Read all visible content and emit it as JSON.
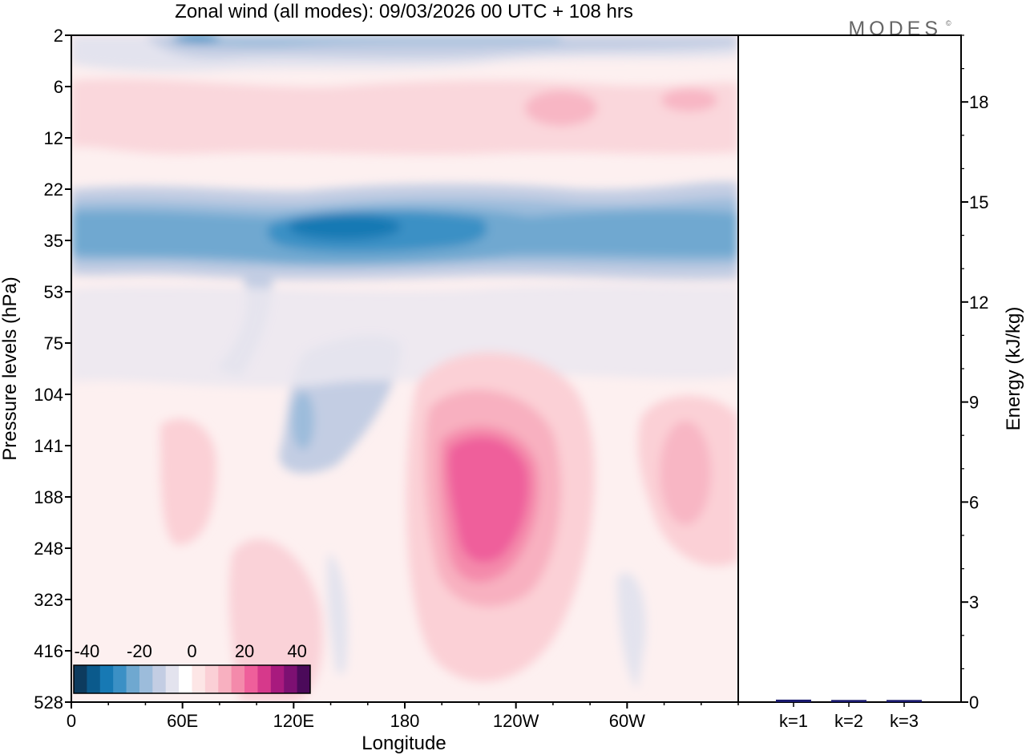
{
  "chart_data": [
    {
      "type": "heatmap",
      "title": "Zonal wind (all modes):  09/03/2026  00 UTC  + 108 hrs",
      "xlabel": "Longitude",
      "ylabel": "Pressure levels (hPa)",
      "x_ticks": [
        "0",
        "60E",
        "120E",
        "180",
        "120W",
        "60W"
      ],
      "x_tick_lon": [
        0,
        60,
        120,
        180,
        240,
        300
      ],
      "xlim": [
        0,
        360
      ],
      "y_ticks": [
        "2",
        "6",
        "12",
        "22",
        "35",
        "53",
        "75",
        "104",
        "141",
        "188",
        "248",
        "323",
        "416",
        "528"
      ],
      "colorbar": {
        "tick_labels": [
          "-40",
          "-20",
          "0",
          "20",
          "40"
        ],
        "tick_values": [
          -40,
          -20,
          0,
          20,
          40
        ],
        "range": [
          -45,
          45
        ],
        "colors": [
          "#0d3b5e",
          "#0b5a8c",
          "#1779b4",
          "#3b90c5",
          "#6fa8d0",
          "#9cbcdb",
          "#c3cde3",
          "#e3e3ee",
          "#ffffff",
          "#fde6e6",
          "#fbd0d6",
          "#f8b0c0",
          "#f48aab",
          "#ef5f9b",
          "#d6398b",
          "#a81a7e",
          "#7d1072",
          "#4b0a5a"
        ]
      },
      "field_features": [
        {
          "name": "jet core 35hPa east",
          "lon": 145,
          "level": 35,
          "value": -36
        },
        {
          "name": "jet 35hPa west",
          "lon": 330,
          "level": 35,
          "value": -28
        },
        {
          "name": "upper easterly 2hPa",
          "lon": 60,
          "level": 2,
          "value": -24
        },
        {
          "name": "westerly maximum 188hPa",
          "lon": 205,
          "level": 188,
          "value": 26
        },
        {
          "name": "westerly 141hPa east",
          "lon": 330,
          "level": 141,
          "value": 14
        }
      ]
    },
    {
      "type": "bar",
      "ylabel": "Energy (kJ/kg)",
      "categories": [
        "k=1",
        "k=2",
        "k=3"
      ],
      "values": [
        0.05,
        0.04,
        0.04
      ],
      "ylim": [
        0,
        20
      ],
      "y_ticks": [
        "0",
        "3",
        "6",
        "9",
        "12",
        "15",
        "18"
      ],
      "y_tick_values": [
        0,
        3,
        6,
        9,
        12,
        15,
        18
      ]
    }
  ],
  "logo": {
    "text": "MODES",
    "mark": "©"
  }
}
